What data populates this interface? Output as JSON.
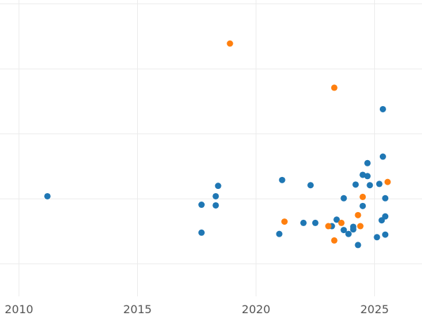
{
  "chart_data": {
    "type": "scatter",
    "xlim": [
      2009.2,
      2027.0
    ],
    "ylim": [
      0.0,
      4.56
    ],
    "x_ticks": [
      2010,
      2015,
      2020,
      2025
    ],
    "x_tick_labels": [
      "2010",
      "2015",
      "2020",
      "2025"
    ],
    "y_gridlines": [
      0.5,
      1.5,
      2.5,
      3.5,
      4.5
    ],
    "grid": true,
    "legend": "none",
    "series": [
      {
        "color": "#1f77b4",
        "points": [
          {
            "x": 2011.2,
            "y": 1.54
          },
          {
            "x": 2017.7,
            "y": 1.41
          },
          {
            "x": 2017.7,
            "y": 0.98
          },
          {
            "x": 2018.3,
            "y": 1.4
          },
          {
            "x": 2018.3,
            "y": 1.54
          },
          {
            "x": 2018.4,
            "y": 1.7
          },
          {
            "x": 2020.98,
            "y": 0.96
          },
          {
            "x": 2021.1,
            "y": 1.79
          },
          {
            "x": 2022.0,
            "y": 1.13
          },
          {
            "x": 2022.3,
            "y": 1.71
          },
          {
            "x": 2022.5,
            "y": 1.13
          },
          {
            "x": 2023.2,
            "y": 1.08
          },
          {
            "x": 2023.4,
            "y": 1.18
          },
          {
            "x": 2023.7,
            "y": 1.02
          },
          {
            "x": 2023.7,
            "y": 1.51
          },
          {
            "x": 2023.9,
            "y": 0.96
          },
          {
            "x": 2024.1,
            "y": 1.03
          },
          {
            "x": 2024.1,
            "y": 1.07
          },
          {
            "x": 2024.2,
            "y": 1.72
          },
          {
            "x": 2024.3,
            "y": 0.79
          },
          {
            "x": 2024.5,
            "y": 1.39
          },
          {
            "x": 2024.5,
            "y": 1.87
          },
          {
            "x": 2024.7,
            "y": 2.05
          },
          {
            "x": 2024.7,
            "y": 1.85
          },
          {
            "x": 2024.8,
            "y": 1.71
          },
          {
            "x": 2025.1,
            "y": 0.91
          },
          {
            "x": 2025.2,
            "y": 1.73
          },
          {
            "x": 2025.3,
            "y": 1.17
          },
          {
            "x": 2025.35,
            "y": 2.15
          },
          {
            "x": 2025.35,
            "y": 2.88
          },
          {
            "x": 2025.45,
            "y": 1.51
          },
          {
            "x": 2025.45,
            "y": 1.23
          },
          {
            "x": 2025.45,
            "y": 0.95
          }
        ]
      },
      {
        "color": "#ff7f0e",
        "points": [
          {
            "x": 2018.9,
            "y": 3.89
          },
          {
            "x": 2021.2,
            "y": 1.15
          },
          {
            "x": 2023.05,
            "y": 1.08
          },
          {
            "x": 2023.3,
            "y": 0.86
          },
          {
            "x": 2023.3,
            "y": 3.21
          },
          {
            "x": 2023.6,
            "y": 1.13
          },
          {
            "x": 2024.3,
            "y": 1.25
          },
          {
            "x": 2024.4,
            "y": 1.08
          },
          {
            "x": 2024.5,
            "y": 1.53
          },
          {
            "x": 2025.55,
            "y": 1.76
          }
        ]
      }
    ]
  }
}
